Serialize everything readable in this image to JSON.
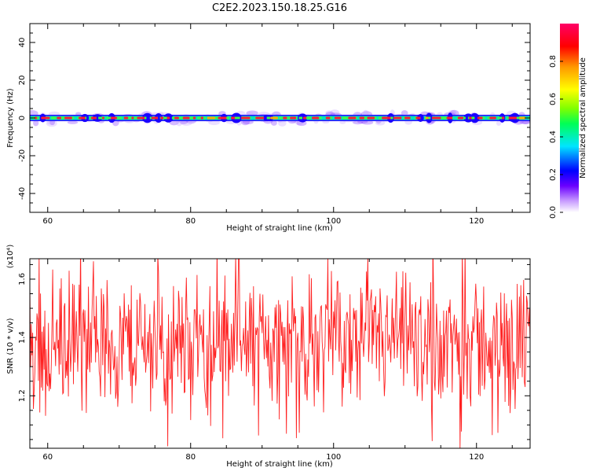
{
  "chart_data": [
    {
      "type": "heatmap",
      "title": "C2E2.2023.150.18.25.G16",
      "xlabel": "Height of straight line (km)",
      "ylabel": "Frequency (Hz)",
      "xlim": [
        57.5,
        127.5
      ],
      "ylim": [
        -50,
        50
      ],
      "x_ticks": [
        60,
        80,
        100,
        120
      ],
      "y_ticks": [
        -40,
        -20,
        0,
        20,
        40
      ],
      "colorbar": {
        "label": "Normalized spectral amplitude",
        "range": [
          0,
          1
        ],
        "ticks": [
          0.0,
          0.2,
          0.4,
          0.6,
          0.8
        ],
        "tick_labels": [
          "0.0",
          "0.2",
          "0.4",
          "0.6",
          "0.8"
        ],
        "colors": [
          "#ffffff",
          "#c89cff",
          "#6a00ff",
          "#0000ff",
          "#00e5ff",
          "#00ff55",
          "#7fff00",
          "#ffff00",
          "#ff9900",
          "#ff0000",
          "#ff0066"
        ]
      },
      "band_center_hz": 0,
      "band_halfwidth_hz": 2
    },
    {
      "type": "line",
      "xlabel": "Height of straight line (km)",
      "ylabel": "SNR (10 * v/v)",
      "y_multiplier": "(x10⁴)",
      "xlim": [
        57.5,
        127.5
      ],
      "ylim": [
        1.02,
        1.67
      ],
      "x_ticks": [
        60,
        80,
        100,
        120
      ],
      "y_ticks": [
        1.2,
        1.4,
        1.6
      ],
      "series_color": "#ff2020",
      "mean": 1.38,
      "amplitude": 0.28
    }
  ]
}
